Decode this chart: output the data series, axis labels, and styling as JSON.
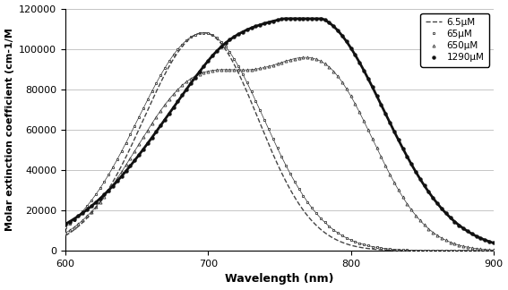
{
  "xlim": [
    600,
    900
  ],
  "ylim": [
    0,
    120000
  ],
  "xlabel": "Wavelength (nm)",
  "ylabel": "Molar extinction coefficient (cm-1/M",
  "yticks": [
    0,
    20000,
    40000,
    60000,
    80000,
    100000,
    120000
  ],
  "xticks": [
    600,
    700,
    800,
    900
  ],
  "background_color": "#ffffff",
  "grid_color": "#bbbbbb",
  "legend_fontsize": 7.5,
  "tick_fontsize": 8,
  "label_fontsize": 9,
  "series_labels": [
    "6.5μM",
    "65μM",
    "650μM",
    "1290μM"
  ]
}
